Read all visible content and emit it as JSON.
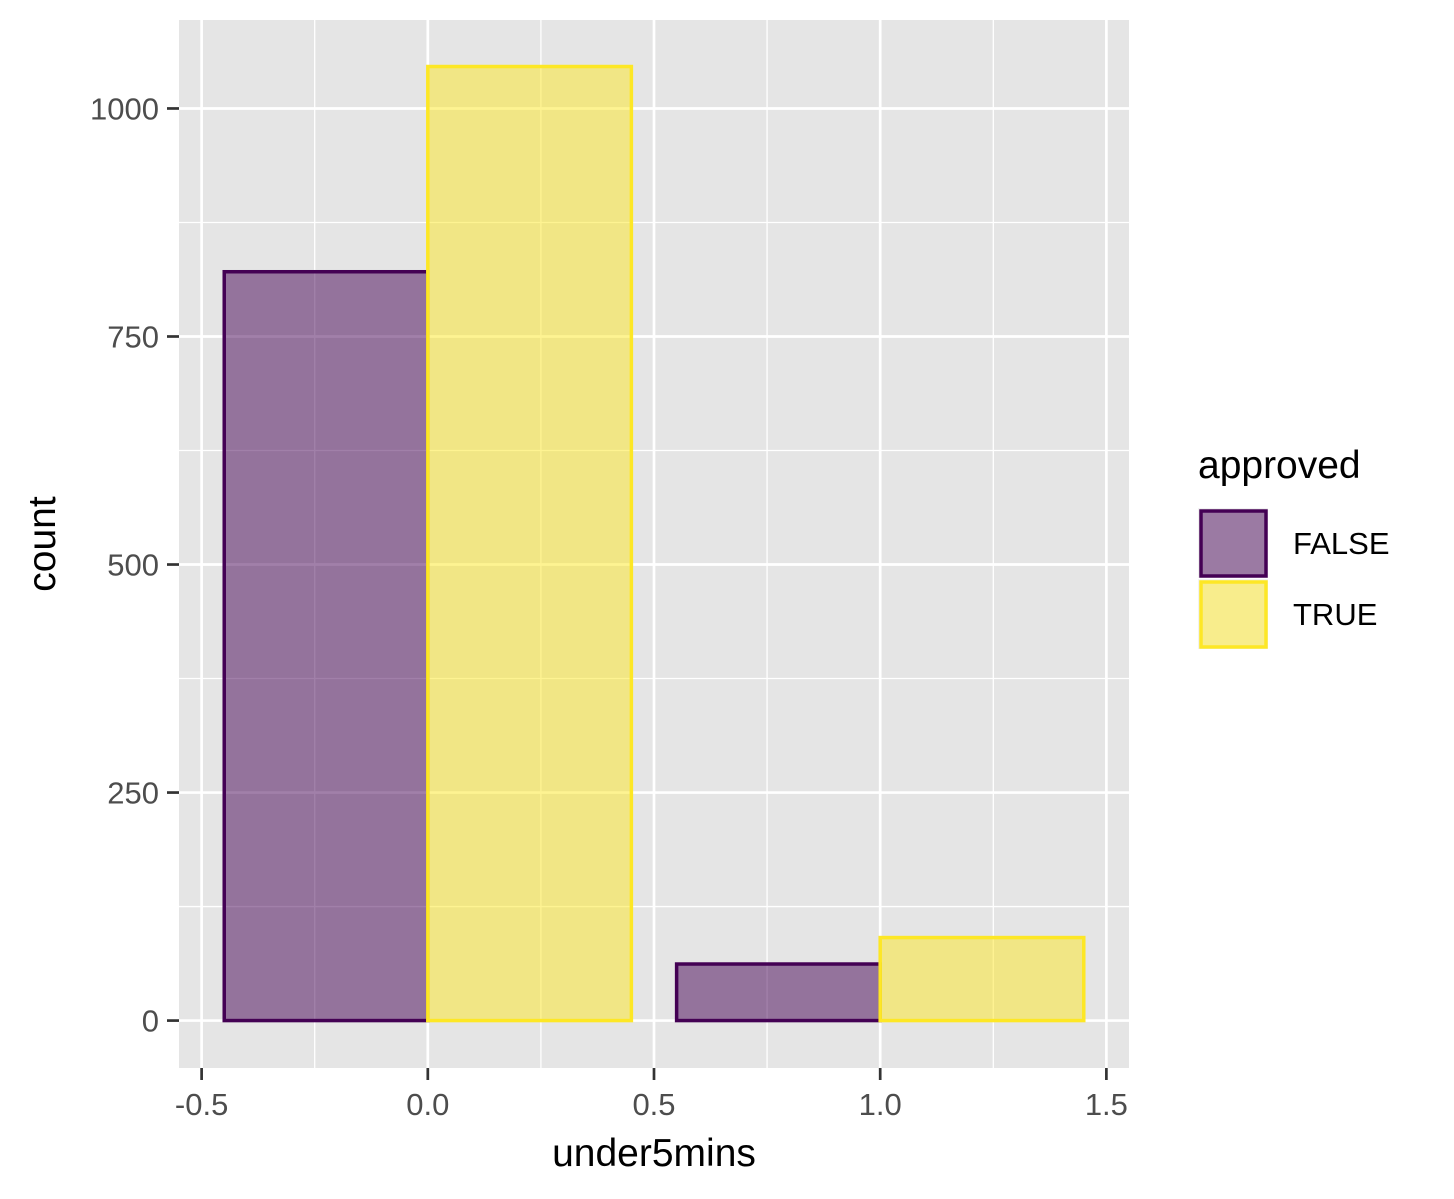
{
  "chart_data": {
    "type": "bar",
    "xlabel": "under5mins",
    "ylabel": "count",
    "xlim": [
      -0.55,
      1.55
    ],
    "ylim": [
      -52,
      1097
    ],
    "x_ticks": [
      -0.5,
      0.0,
      0.5,
      1.0,
      1.5
    ],
    "x_tick_labels": [
      "-0.5",
      "0.0",
      "0.5",
      "1.0",
      "1.5"
    ],
    "y_ticks": [
      0,
      250,
      500,
      750,
      1000
    ],
    "y_tick_labels": [
      "0",
      "250",
      "500",
      "750",
      "1000"
    ],
    "grid": true,
    "legend": {
      "title": "approved",
      "position": "right"
    },
    "series": [
      {
        "name": "FALSE",
        "fill": "#440154",
        "stroke": "#440154",
        "bars": [
          {
            "x": -0.225,
            "width": 0.45,
            "value": 821
          },
          {
            "x": 0.775,
            "width": 0.45,
            "value": 62
          }
        ]
      },
      {
        "name": "TRUE",
        "fill": "#FDE725",
        "stroke": "#FDE725",
        "bars": [
          {
            "x": 0.225,
            "width": 0.45,
            "value": 1046
          },
          {
            "x": 1.225,
            "width": 0.45,
            "value": 91
          }
        ]
      }
    ]
  }
}
